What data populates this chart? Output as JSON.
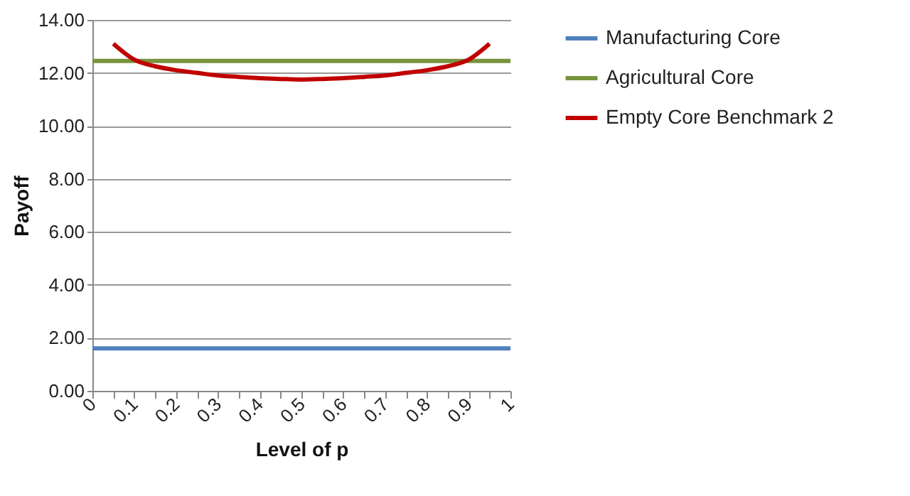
{
  "chart_data": {
    "type": "line",
    "xlabel": "Level of p",
    "ylabel": "Payoff",
    "xlim": [
      0,
      1
    ],
    "xticks": [
      0,
      {
        "value": 0.05,
        "label": null
      },
      0.1,
      {
        "value": 0.15,
        "label": null
      },
      0.2,
      {
        "value": 0.25,
        "label": null
      },
      0.3,
      {
        "value": 0.35,
        "label": null
      },
      0.4,
      {
        "value": 0.45,
        "label": null
      },
      0.5,
      {
        "value": 0.55,
        "label": null
      },
      0.6,
      {
        "value": 0.65,
        "label": null
      },
      0.7,
      {
        "value": 0.75,
        "label": null
      },
      0.8,
      {
        "value": 0.85,
        "label": null
      },
      0.9,
      {
        "value": 0.95,
        "label": null
      },
      1
    ],
    "ylim": [
      0,
      14
    ],
    "yticks": [
      {
        "value": 0,
        "label": "0.00"
      },
      {
        "value": 2,
        "label": "2.00"
      },
      {
        "value": 4,
        "label": "4.00"
      },
      {
        "value": 6,
        "label": "6.00"
      },
      {
        "value": 8,
        "label": "8.00"
      },
      {
        "value": 10,
        "label": "10.00"
      },
      {
        "value": 12,
        "label": "12.00"
      },
      {
        "value": 14,
        "label": "14.00"
      }
    ],
    "grid": "y",
    "legend": "right",
    "marker": "none",
    "line_style": "solid",
    "series": [
      {
        "name": "Manufacturing Core",
        "color": "#4f81bd",
        "x": [
          0,
          1
        ],
        "values": [
          1.6,
          1.6
        ]
      },
      {
        "name": "Agricultural Core",
        "color": "#77933c",
        "x": [
          0,
          1
        ],
        "values": [
          12.45,
          12.45
        ]
      },
      {
        "name": "Empty Core Benchmark 2",
        "color": "#c00000",
        "x": [
          0.05,
          0.1,
          0.15,
          0.2,
          0.25,
          0.3,
          0.35,
          0.4,
          0.45,
          0.5,
          0.55,
          0.6,
          0.65,
          0.7,
          0.75,
          0.8,
          0.85,
          0.9,
          0.95
        ],
        "values": [
          13.1,
          12.5,
          12.25,
          12.1,
          12.0,
          11.9,
          11.85,
          11.8,
          11.77,
          11.75,
          11.77,
          11.8,
          11.85,
          11.9,
          12.0,
          12.1,
          12.25,
          12.5,
          13.1
        ]
      }
    ]
  }
}
